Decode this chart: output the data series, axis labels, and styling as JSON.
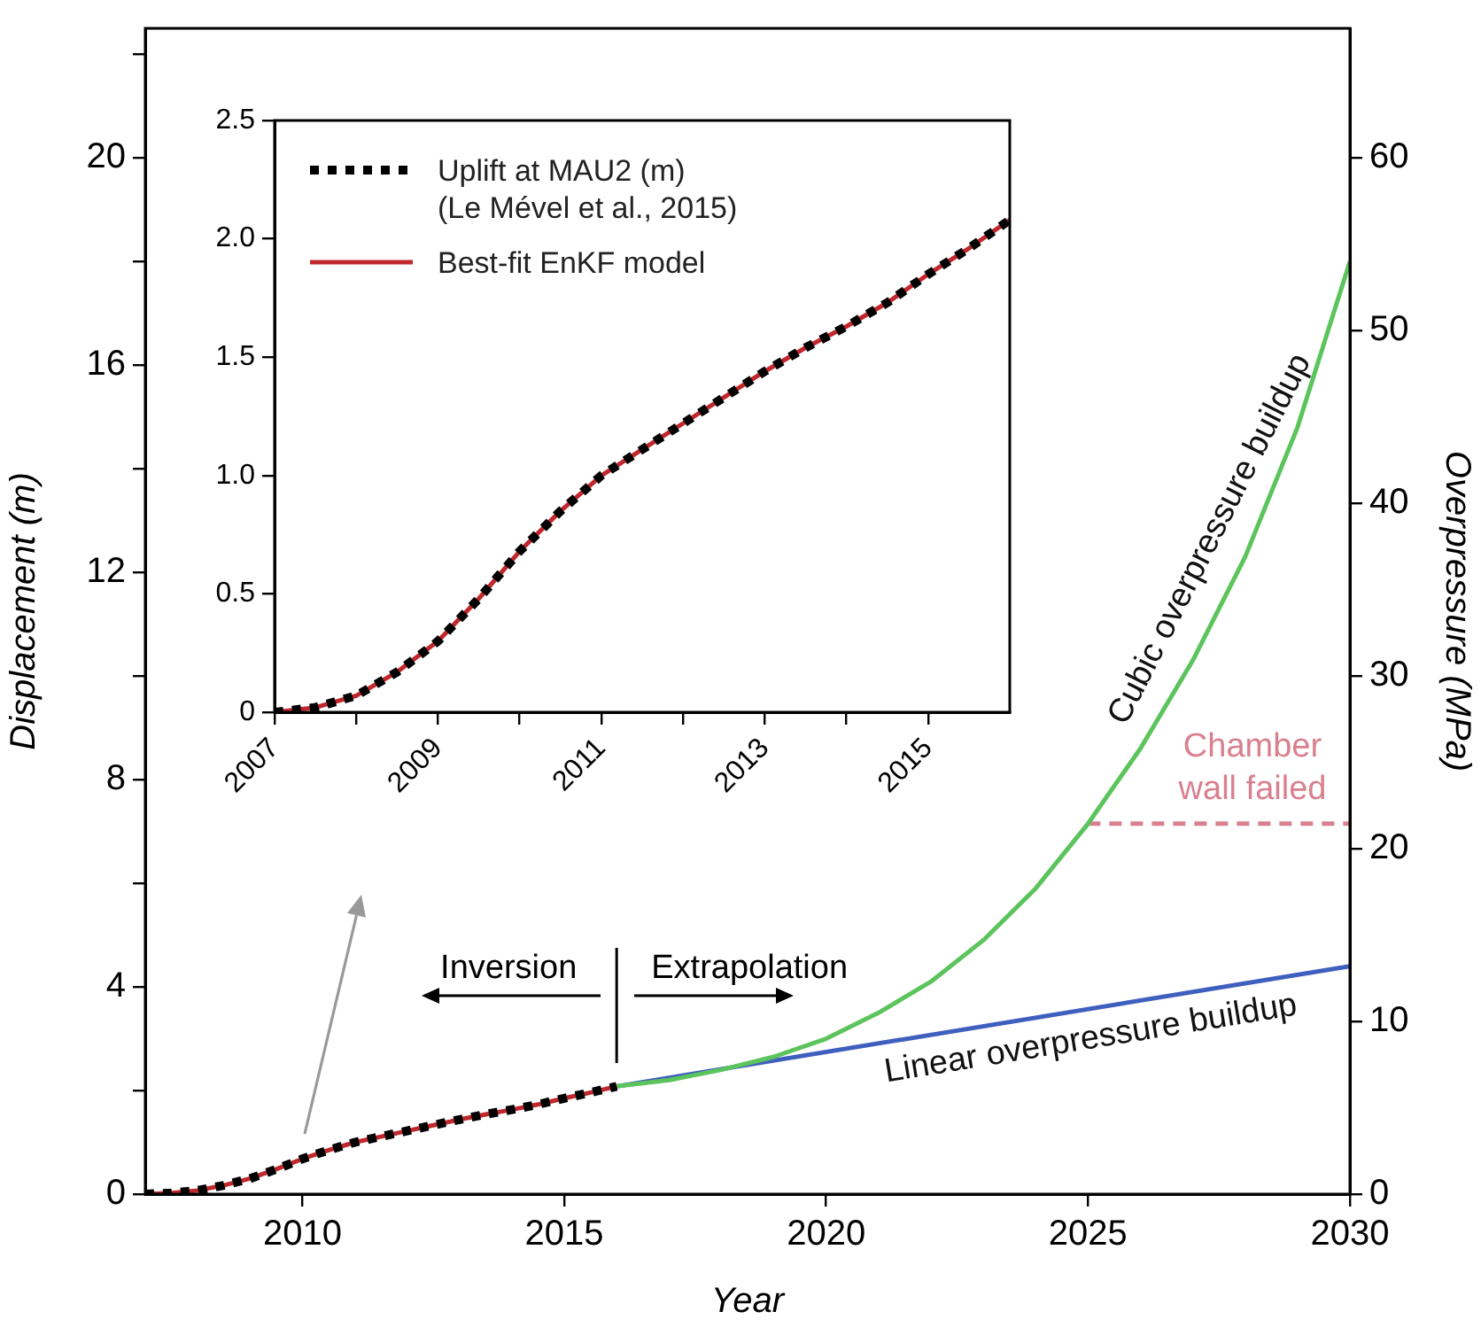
{
  "chart_data": [
    {
      "type": "line",
      "xlabel": "Year",
      "ylabel": "Displacement (m)",
      "y2label": "Overpressure (MPa)",
      "xlim": [
        2007,
        2030
      ],
      "xticks": [
        2010,
        2015,
        2020,
        2025,
        2030
      ],
      "ylim": [
        0,
        22.5
      ],
      "yticks": [
        0,
        {
          "value": 2,
          "label": null
        },
        4,
        {
          "value": 6,
          "label": null
        },
        8,
        {
          "value": 10,
          "label": null
        },
        12,
        {
          "value": 14,
          "label": null
        },
        16,
        {
          "value": 18,
          "label": null
        },
        20,
        {
          "value": 22,
          "label": null
        }
      ],
      "y2lim": [
        0,
        67.5
      ],
      "y2ticks": [
        0,
        10,
        20,
        30,
        40,
        50,
        60
      ],
      "legend": false,
      "marker": "none",
      "ref_lines": [
        {
          "axis": "x",
          "value": 2016
        }
      ],
      "annotations": [
        "Inversion",
        "Extrapolation"
      ],
      "series": [
        {
          "color": "#000000",
          "line_style": "dotted",
          "x": [
            2007,
            2007.5,
            2008,
            2008.5,
            2009,
            2009.5,
            2010,
            2010.5,
            2011,
            2011.5,
            2012,
            2012.5,
            2013,
            2013.5,
            2014,
            2014.5,
            2015,
            2015.5,
            2016
          ],
          "values": [
            0,
            0.02,
            0.07,
            0.17,
            0.3,
            0.48,
            0.68,
            0.85,
            1.0,
            1.11,
            1.22,
            1.33,
            1.44,
            1.54,
            1.63,
            1.73,
            1.85,
            1.96,
            2.08
          ]
        },
        {
          "color": "#c0282d",
          "line_style": "solid",
          "x": [
            2007,
            2007.5,
            2008,
            2008.5,
            2009,
            2009.5,
            2010,
            2010.5,
            2011,
            2011.5,
            2012,
            2012.5,
            2013,
            2013.5,
            2014,
            2014.5,
            2015,
            2015.5,
            2016
          ],
          "values": [
            0,
            0.02,
            0.07,
            0.17,
            0.3,
            0.48,
            0.68,
            0.85,
            1.0,
            1.11,
            1.22,
            1.33,
            1.44,
            1.54,
            1.63,
            1.73,
            1.85,
            1.96,
            2.08
          ]
        },
        {
          "name": "Cubic overpressure buildup",
          "color": "#5cc45c",
          "line_style": "solid",
          "x": [
            2016,
            2017,
            2018,
            2019,
            2020,
            2021,
            2022,
            2023,
            2024,
            2025,
            2026,
            2027,
            2028,
            2029,
            2030
          ],
          "values": [
            2.08,
            2.2,
            2.4,
            2.65,
            3.0,
            3.5,
            4.1,
            4.9,
            5.9,
            7.15,
            8.6,
            10.3,
            12.3,
            14.8,
            18.0
          ]
        },
        {
          "name": "Linear overpressure buildup",
          "color": "#3f5fbf",
          "line_style": "solid",
          "x": [
            2016,
            2030
          ],
          "values": [
            2.08,
            4.4
          ]
        },
        {
          "name": "Chamber wall failed",
          "color": "#d9808f",
          "line_style": "dashed",
          "x": [
            2025,
            2030
          ],
          "values": [
            7.15,
            7.15
          ]
        }
      ]
    },
    {
      "type": "line",
      "xlim": [
        2007,
        2016
      ],
      "xticks": [
        2007,
        {
          "value": 2008,
          "label": null
        },
        2009,
        {
          "value": 2010,
          "label": null
        },
        2011,
        {
          "value": 2012,
          "label": null
        },
        2013,
        {
          "value": 2014,
          "label": null
        },
        2015
      ],
      "ylim": [
        0,
        2.5
      ],
      "yticks": [
        0,
        0.5,
        {
          "value": 1,
          "label": "1.0"
        },
        1.5,
        {
          "value": 2,
          "label": "2.0"
        },
        2.5
      ],
      "legend": "top left",
      "marker": "none",
      "series": [
        {
          "name": "Uplift at MAU2 (m) (Le Mével et al., 2015)",
          "color": "#000000",
          "line_style": "dotted",
          "x": [
            2007,
            2007.5,
            2008,
            2008.5,
            2009,
            2009.5,
            2010,
            2010.5,
            2011,
            2011.5,
            2012,
            2012.5,
            2013,
            2013.5,
            2014,
            2014.5,
            2015,
            2015.5,
            2016
          ],
          "values": [
            0,
            0.02,
            0.07,
            0.17,
            0.3,
            0.48,
            0.68,
            0.85,
            1.0,
            1.11,
            1.22,
            1.33,
            1.44,
            1.54,
            1.63,
            1.73,
            1.85,
            1.96,
            2.08
          ]
        },
        {
          "name": "Best-fit EnKF model",
          "color": "#c0282d",
          "line_style": "solid",
          "x": [
            2007,
            2007.5,
            2008,
            2008.5,
            2009,
            2009.5,
            2010,
            2010.5,
            2011,
            2011.5,
            2012,
            2012.5,
            2013,
            2013.5,
            2014,
            2014.5,
            2015,
            2015.5,
            2016
          ],
          "values": [
            0,
            0.02,
            0.07,
            0.17,
            0.3,
            0.48,
            0.68,
            0.85,
            1.0,
            1.11,
            1.22,
            1.33,
            1.44,
            1.54,
            1.63,
            1.73,
            1.85,
            1.96,
            2.08
          ]
        }
      ]
    }
  ]
}
